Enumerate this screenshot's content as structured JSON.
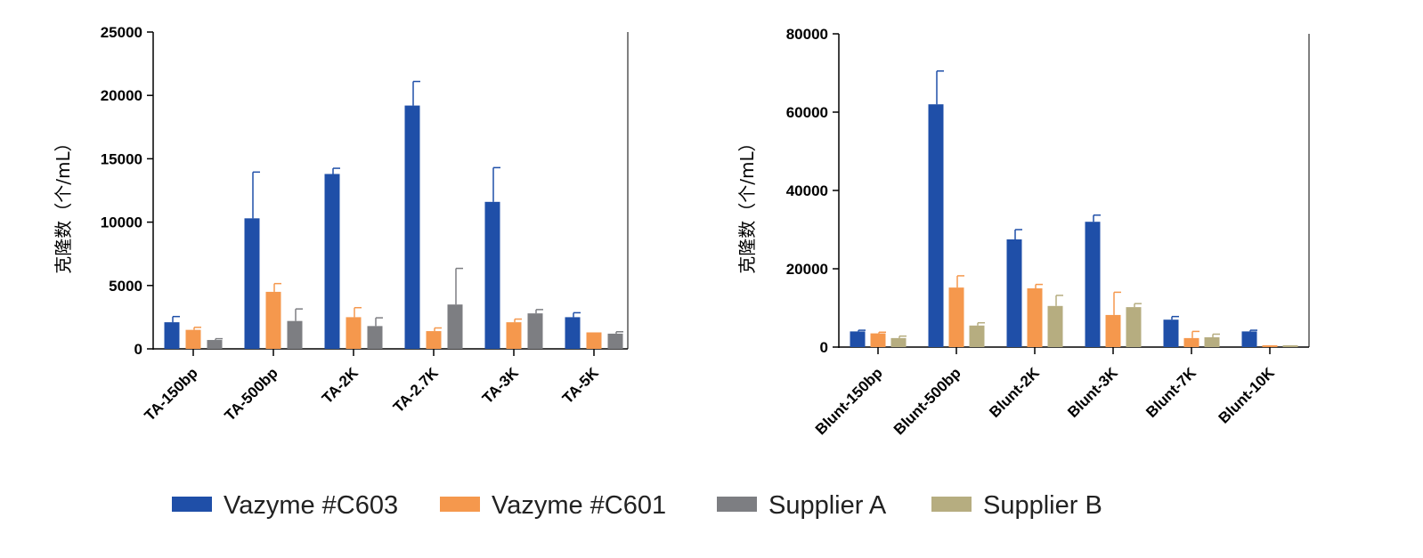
{
  "chart_data": [
    {
      "type": "bar",
      "ylabel": "克隆数（个/mL）",
      "ylim": [
        0,
        25000
      ],
      "yticks": [
        "0",
        "5000",
        "10000",
        "15000",
        "20000",
        "25000"
      ],
      "categories": [
        "TA-150bp",
        "TA-500bp",
        "TA-2K",
        "TA-2.7K",
        "TA-3K",
        "TA-5K"
      ],
      "series": [
        {
          "name": "Vazyme #C603",
          "values": [
            2100,
            10300,
            13800,
            19200,
            11600,
            2500
          ],
          "errors": [
            450,
            3650,
            450,
            1900,
            2700,
            350
          ]
        },
        {
          "name": "Vazyme #C601",
          "values": [
            1500,
            4500,
            2500,
            1400,
            2100,
            1300
          ],
          "errors": [
            200,
            650,
            750,
            250,
            250,
            0
          ]
        },
        {
          "name": "Supplier A",
          "values": [
            700,
            2200,
            1800,
            3500,
            2800,
            1200
          ],
          "errors": [
            100,
            950,
            650,
            2850,
            300,
            150
          ]
        }
      ]
    },
    {
      "type": "bar",
      "ylabel": "克隆数（个/mL）",
      "ylim": [
        0,
        80000
      ],
      "yticks": [
        "0",
        "20000",
        "40000",
        "60000",
        "80000"
      ],
      "categories": [
        "Blunt-150bp",
        "Blunt-500bp",
        "Blunt-2K",
        "Blunt-3K",
        "Blunt-7K",
        "Blunt-10K"
      ],
      "series": [
        {
          "name": "Vazyme #C603",
          "values": [
            4000,
            62000,
            27500,
            32000,
            7000,
            4000
          ],
          "errors": [
            300,
            8500,
            2500,
            1700,
            800,
            300
          ]
        },
        {
          "name": "Vazyme #C601",
          "values": [
            3500,
            15200,
            15000,
            8200,
            2300,
            0
          ],
          "errors": [
            300,
            3000,
            1000,
            5800,
            1700,
            0
          ]
        },
        {
          "name": "Supplier B",
          "values": [
            2300,
            5500,
            10500,
            10200,
            2500,
            0
          ],
          "errors": [
            500,
            700,
            2700,
            900,
            800,
            0
          ]
        }
      ]
    }
  ],
  "legend": [
    {
      "label": "Vazyme #C603",
      "color": "#1f4fa8"
    },
    {
      "label": "Vazyme #C601",
      "color": "#f5984d"
    },
    {
      "label": "Supplier A",
      "color": "#7d7e82"
    },
    {
      "label": "Supplier B",
      "color": "#b6ad80"
    }
  ],
  "colors": {
    "Vazyme #C603": "#1f4fa8",
    "Vazyme #C601": "#f5984d",
    "Supplier A": "#7d7e82",
    "Supplier B": "#b6ad80"
  }
}
